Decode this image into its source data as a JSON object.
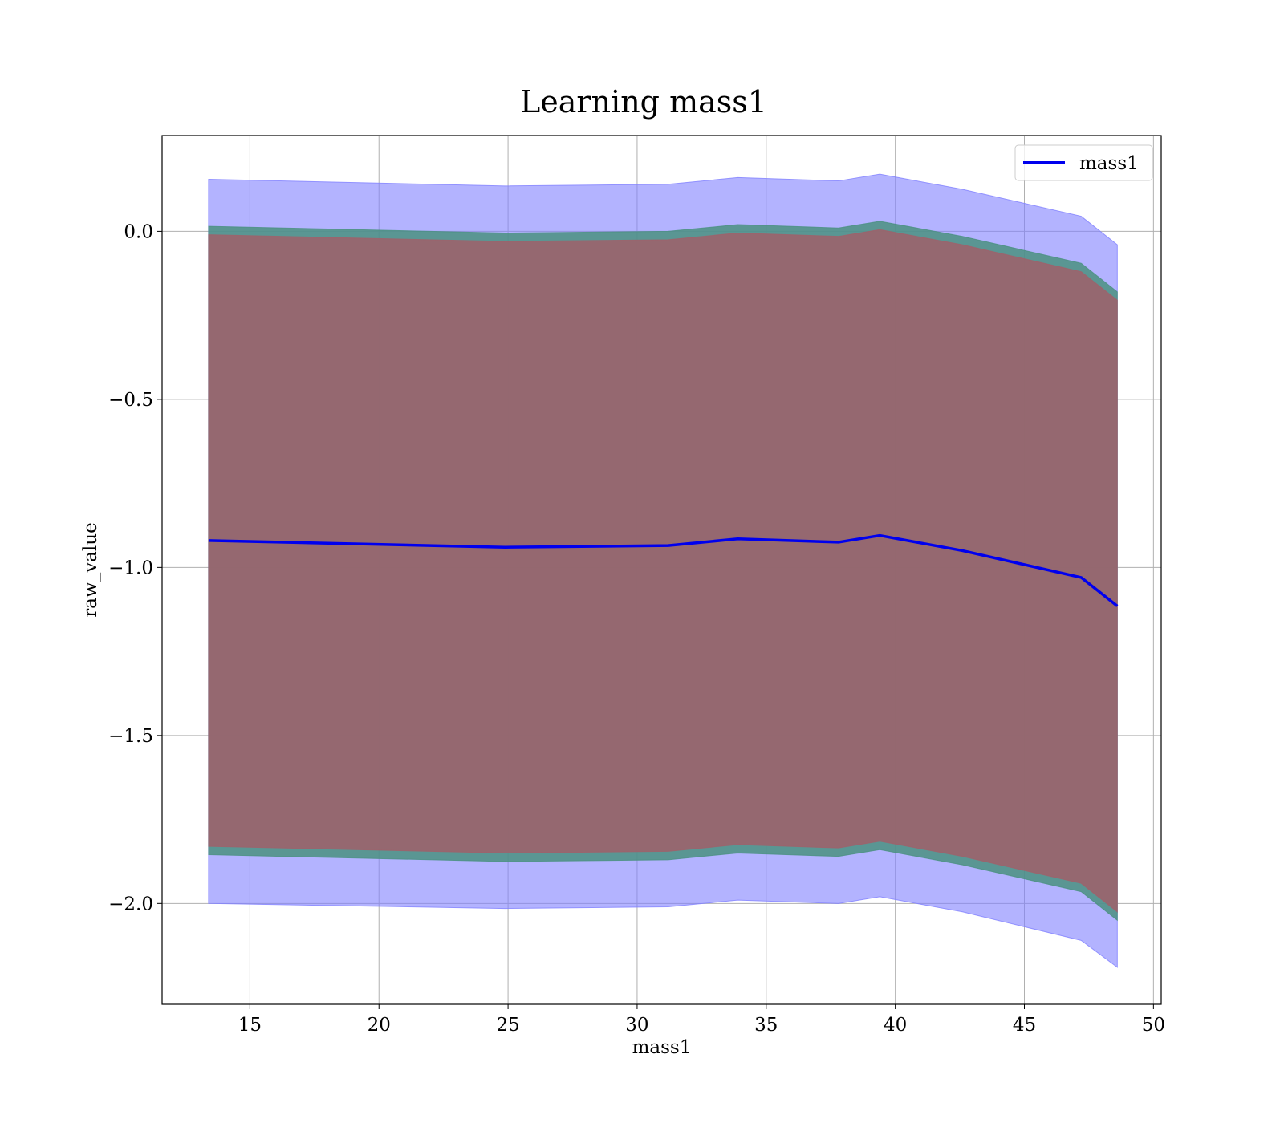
{
  "chart_data": {
    "type": "line",
    "title": "Learning mass1",
    "xlabel": "mass1",
    "ylabel": "raw_value",
    "xlim": [
      11.6,
      50.3
    ],
    "ylim": [
      -2.3,
      0.285
    ],
    "xticks": [
      15,
      20,
      25,
      30,
      35,
      40,
      45,
      50
    ],
    "yticks": [
      0.0,
      -0.5,
      -1.0,
      -1.5,
      -2.0
    ],
    "ytick_labels": [
      "0.0",
      "−0.5",
      "−1.0",
      "−1.5",
      "−2.0"
    ],
    "grid": true,
    "legend": {
      "placement": "top-right",
      "entries": [
        "mass1"
      ]
    },
    "x": [
      13.4,
      24.9,
      31.2,
      33.9,
      37.8,
      39.4,
      42.6,
      47.2,
      48.6
    ],
    "series": [
      {
        "name": "mass1",
        "color": "#0000ee",
        "values": [
          -0.92,
          -0.94,
          -0.935,
          -0.915,
          -0.925,
          -0.905,
          -0.95,
          -1.03,
          -1.115
        ]
      }
    ],
    "bands": [
      {
        "color": "#8080ff",
        "lower": [
          -2.0,
          -2.015,
          -2.01,
          -1.99,
          -2.0,
          -1.98,
          -2.025,
          -2.11,
          -2.19
        ],
        "upper": [
          0.155,
          0.135,
          0.14,
          0.16,
          0.15,
          0.17,
          0.125,
          0.045,
          -0.04
        ]
      },
      {
        "color": "#4a9080",
        "lower": [
          -1.855,
          -1.875,
          -1.87,
          -1.85,
          -1.86,
          -1.84,
          -1.885,
          -1.965,
          -2.05
        ],
        "upper": [
          0.015,
          -0.005,
          0.0,
          0.02,
          0.01,
          0.03,
          -0.015,
          -0.095,
          -0.18
        ]
      },
      {
        "color": "#a0606a",
        "lower": [
          -1.83,
          -1.85,
          -1.845,
          -1.825,
          -1.835,
          -1.815,
          -1.86,
          -1.94,
          -2.025
        ],
        "upper": [
          -0.01,
          -0.03,
          -0.025,
          -0.005,
          -0.015,
          0.005,
          -0.04,
          -0.12,
          -0.205
        ]
      }
    ]
  }
}
